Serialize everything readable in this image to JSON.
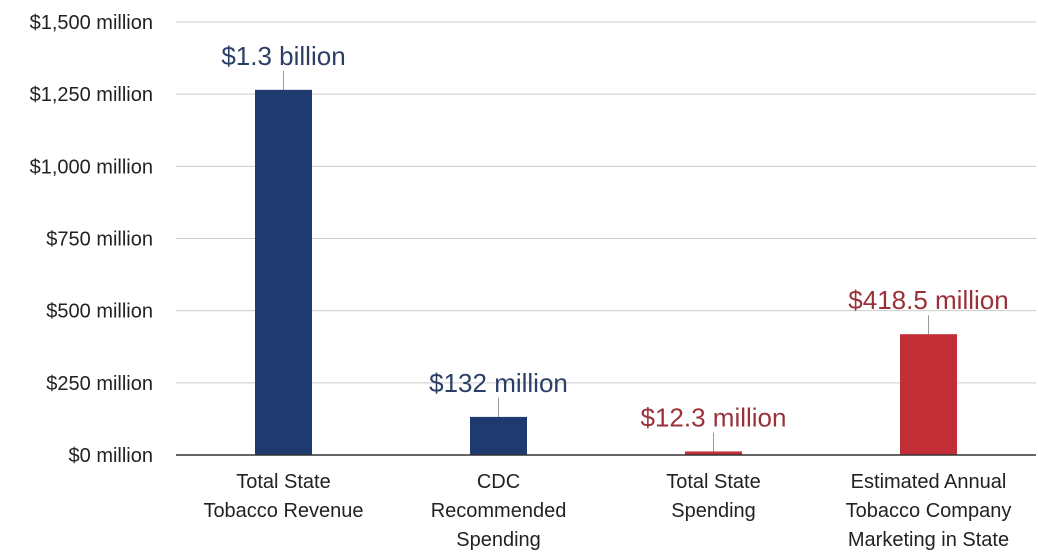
{
  "chart_data": {
    "type": "bar",
    "categories": [
      [
        "Total State",
        "Tobacco Revenue"
      ],
      [
        "CDC",
        "Recommended",
        "Spending"
      ],
      [
        "Total State",
        "Spending"
      ],
      [
        "Estimated Annual",
        "Tobacco Company",
        "Marketing in State"
      ]
    ],
    "values": [
      1265,
      132,
      12.3,
      418.5
    ],
    "data_labels": [
      "$1.3 billion",
      "$132 million",
      "$12.3 million",
      "$418.5 million"
    ],
    "bar_colors": [
      "#1e3a6e",
      "#1e3a6e",
      "#c22f36",
      "#c22f36"
    ],
    "label_colors": [
      "#2b3f66",
      "#2b3f66",
      "#9a3139",
      "#9a3139"
    ],
    "ylim": [
      0,
      1500
    ],
    "yticks": [
      0,
      250,
      500,
      750,
      1000,
      1250,
      1500
    ],
    "ytick_labels": [
      "$0 million",
      "$250 million",
      "$500 million",
      "$750 million",
      "$1,000 million",
      "$1,250 million",
      "$1,500 million"
    ],
    "grid": true,
    "title": "",
    "xlabel": "",
    "ylabel": ""
  }
}
